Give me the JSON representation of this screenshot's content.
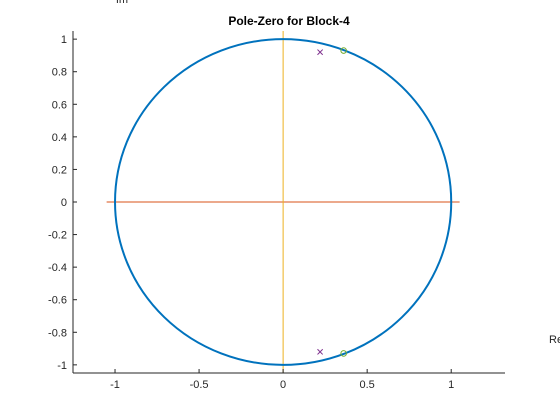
{
  "chart_data": {
    "type": "scatter",
    "title": "Pole-Zero for Block-4",
    "xlabel": "Re",
    "ylabel": "Im",
    "xlim": [
      -1.25,
      1.32
    ],
    "ylim": [
      -1.05,
      1.05
    ],
    "x_ticks": [
      -1,
      -0.5,
      0,
      0.5,
      1
    ],
    "x_tick_labels": [
      "-1",
      "-0.5",
      "0",
      "0.5",
      "1"
    ],
    "y_ticks": [
      1,
      0.8,
      0.6,
      0.4,
      0.2,
      0,
      -0.2,
      -0.4,
      -0.6,
      -0.8,
      -1
    ],
    "y_tick_labels": [
      "1",
      "0.8",
      "0.6",
      "0.4",
      "0.2",
      "0",
      "-0.2",
      "-0.4",
      "-0.6",
      "-0.8",
      "-1"
    ],
    "grid": false,
    "unit_circle": {
      "radius": 1,
      "color": "#0072BD"
    },
    "real_axis_line": {
      "x": [
        -1.05,
        1.05
      ],
      "color": "#D95319"
    },
    "imag_axis_line": {
      "y": [
        -1.05,
        1.05
      ],
      "color": "#EDB120"
    },
    "series": [
      {
        "marker": "x",
        "color": "#7E2F8E",
        "points": [
          [
            0.22,
            0.92
          ],
          [
            0.22,
            -0.92
          ]
        ]
      },
      {
        "marker": "o",
        "color": "#77AC30",
        "points": [
          [
            0.36,
            0.93
          ],
          [
            0.36,
            -0.93
          ]
        ]
      }
    ]
  }
}
